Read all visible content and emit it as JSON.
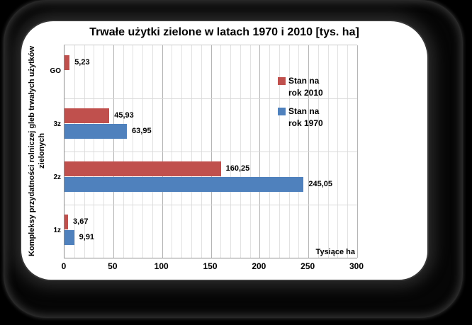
{
  "window": {
    "background_color": "#000000",
    "panel_color": "#ffffff"
  },
  "chart_data": {
    "type": "bar",
    "orientation": "horizontal",
    "title": "Trwałe użytki zielone w latach 1970 i 2010 [tys. ha]",
    "ylabel": "Kompleksy przydatności rolniczej gleb trwałych użytków zielonych",
    "xlabel": "Tysiące ha",
    "categories": [
      "GO",
      "3z",
      "2z",
      "1z"
    ],
    "series": [
      {
        "name": "Stan na rok 2010",
        "color": "#C0504D",
        "values": [
          5.23,
          45.93,
          160.25,
          3.67
        ],
        "value_labels": [
          "5,23",
          "45,93",
          "160,25",
          "3,67"
        ]
      },
      {
        "name": "Stan na rok 1970",
        "color": "#4F81BD",
        "values": [
          0,
          63.95,
          245.05,
          9.91
        ],
        "value_labels": [
          "",
          "63,95",
          "245,05",
          "9,91"
        ]
      }
    ],
    "xlim": [
      0,
      300
    ],
    "xticks": [
      "0",
      "50",
      "100",
      "150",
      "200",
      "250",
      "300"
    ],
    "minor_grid_step": 10,
    "major_grid_step": 50,
    "grid": true,
    "legend_position": "inside-right",
    "grid_minor_color": "#e2e2e2",
    "grid_major_color": "#b5b5b5",
    "grid_band_color": "#d8d8d8"
  }
}
